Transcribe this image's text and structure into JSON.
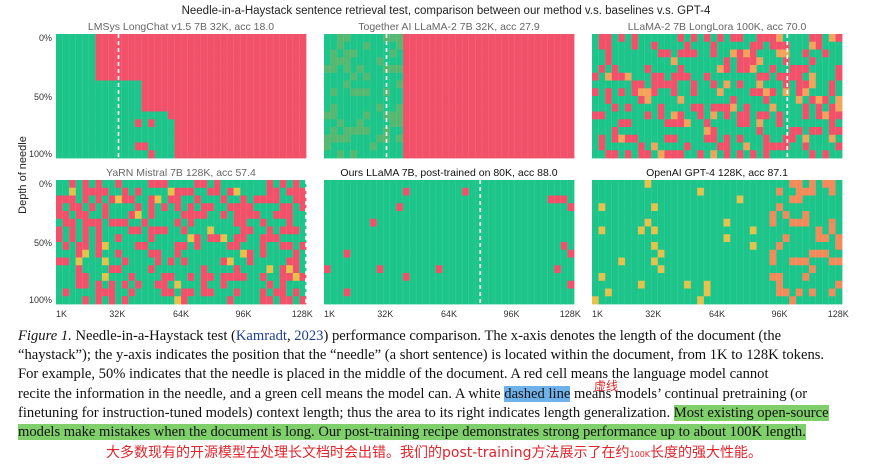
{
  "figure": {
    "title": "Needle-in-a-Haystack sentence retrieval test, comparison between our method v.s. baselines v.s. GPT-4",
    "ylabel": "Depth of needle",
    "y_ticks": [
      "0%",
      "50%",
      "100%"
    ],
    "x_ticks": [
      "1K",
      "32K",
      "64K",
      "96K",
      "128K"
    ]
  },
  "chart_data": [
    {
      "type": "heatmap",
      "title": "LMSys LongChat v1.5 7B 32K, acc 18.0",
      "xlabel": "",
      "ylabel": "Depth of needle",
      "x_ticks": [
        "1K",
        "32K",
        "64K",
        "96K",
        "128K"
      ],
      "y_ticks": [
        "0%",
        "50%",
        "100%"
      ],
      "x_range": [
        1,
        128
      ],
      "pretrain_length_k": 32,
      "accuracy": 18.0,
      "failure_start_k": 12,
      "colors": {
        "pass": "#1ec58b",
        "fail": "#f2516a"
      }
    },
    {
      "type": "heatmap",
      "title": "Together AI LLaMA-2 7B 32K, acc 27.9",
      "xlabel": "",
      "ylabel": "",
      "x_ticks": [
        "1K",
        "32K",
        "64K",
        "96K",
        "128K"
      ],
      "y_ticks": [
        "0%",
        "50%",
        "100%"
      ],
      "x_range": [
        1,
        128
      ],
      "pretrain_length_k": 32,
      "accuracy": 27.9,
      "failure_start_k": 32,
      "colors": {
        "pass": "#1ec58b",
        "fail": "#f2516a"
      }
    },
    {
      "type": "heatmap",
      "title": "LLaMA-2 7B LongLora 100K, acc 70.0",
      "xlabel": "",
      "ylabel": "",
      "x_ticks": [
        "1K",
        "32K",
        "64K",
        "96K",
        "128K"
      ],
      "y_ticks": [
        "0%",
        "50%",
        "100%"
      ],
      "x_range": [
        1,
        128
      ],
      "pretrain_length_k": 100,
      "accuracy": 70.0,
      "failure_start_k": 100,
      "colors": {
        "pass": "#1ec58b",
        "fail": "#f2516a"
      }
    },
    {
      "type": "heatmap",
      "title": "YaRN Mistral 7B 128K, acc 57.4",
      "xlabel": "",
      "ylabel": "Depth of needle",
      "x_ticks": [
        "1K",
        "32K",
        "64K",
        "96K",
        "128K"
      ],
      "y_ticks": [
        "0%",
        "50%",
        "100%"
      ],
      "x_range": [
        1,
        128
      ],
      "pretrain_length_k": 128,
      "accuracy": 57.4,
      "failure_start_k": 20,
      "colors": {
        "pass": "#1ec58b",
        "fail": "#f2516a"
      }
    },
    {
      "type": "heatmap",
      "title": "Ours LLaMA 7B, post-trained on 80K, acc 88.0",
      "xlabel": "",
      "ylabel": "",
      "x_ticks": [
        "1K",
        "32K",
        "64K",
        "96K",
        "128K"
      ],
      "y_ticks": [
        "0%",
        "50%",
        "100%"
      ],
      "x_range": [
        1,
        128
      ],
      "pretrain_length_k": 80,
      "accuracy": 88.0,
      "failure_start_k": 110,
      "colors": {
        "pass": "#1ec58b",
        "fail": "#f2516a"
      }
    },
    {
      "type": "heatmap",
      "title": "OpenAI GPT-4 128K, acc 87.1",
      "xlabel": "",
      "ylabel": "",
      "x_ticks": [
        "1K",
        "32K",
        "64K",
        "96K",
        "128K"
      ],
      "y_ticks": [
        "0%",
        "50%",
        "100%"
      ],
      "x_range": [
        1,
        128
      ],
      "pretrain_length_k": null,
      "accuracy": 87.1,
      "failure_start_k": 90,
      "colors": {
        "pass": "#1ec58b",
        "fail": "#f2516a"
      }
    }
  ],
  "caption": {
    "l1_label": "Figure 1.",
    "l1_a": "Needle-in-a-Haystack test (",
    "l1_cite": "Kamradt",
    "l1_b": ", ",
    "l1_year": "2023",
    "l1_c": ") performance comparison. The x-axis denotes the length of the document (the",
    "l2": "“haystack”); the y-axis indicates the position that the “needle” (a short sentence) is located within the document, from 1K to 128K tokens.",
    "l3": "For example, 50% indicates that the needle is placed in the middle of the document. A red cell means the language model cannot",
    "l4_a": "recite the information in the needle, and a green cell means the model can. A white ",
    "l4_hl": "dashed line",
    "l4_b": " means models’ continual pretraining (or",
    "l5_a": "finetuning for instruction-tuned models) context length; thus the area to its right indicates length generalization. ",
    "l5_hl": "Most existing open-source",
    "l6_hl": "models make mistakes when the document is long. Our post-training recipe demonstrates strong performance up to about 100K length.",
    "annotation_small": "虚线",
    "annotation_a": "大多数现有的开源模型在处理长文档时会出错。我们的post-training方法展示了在约",
    "annotation_small2": "100K",
    "annotation_b": "长度的强大性能。"
  }
}
